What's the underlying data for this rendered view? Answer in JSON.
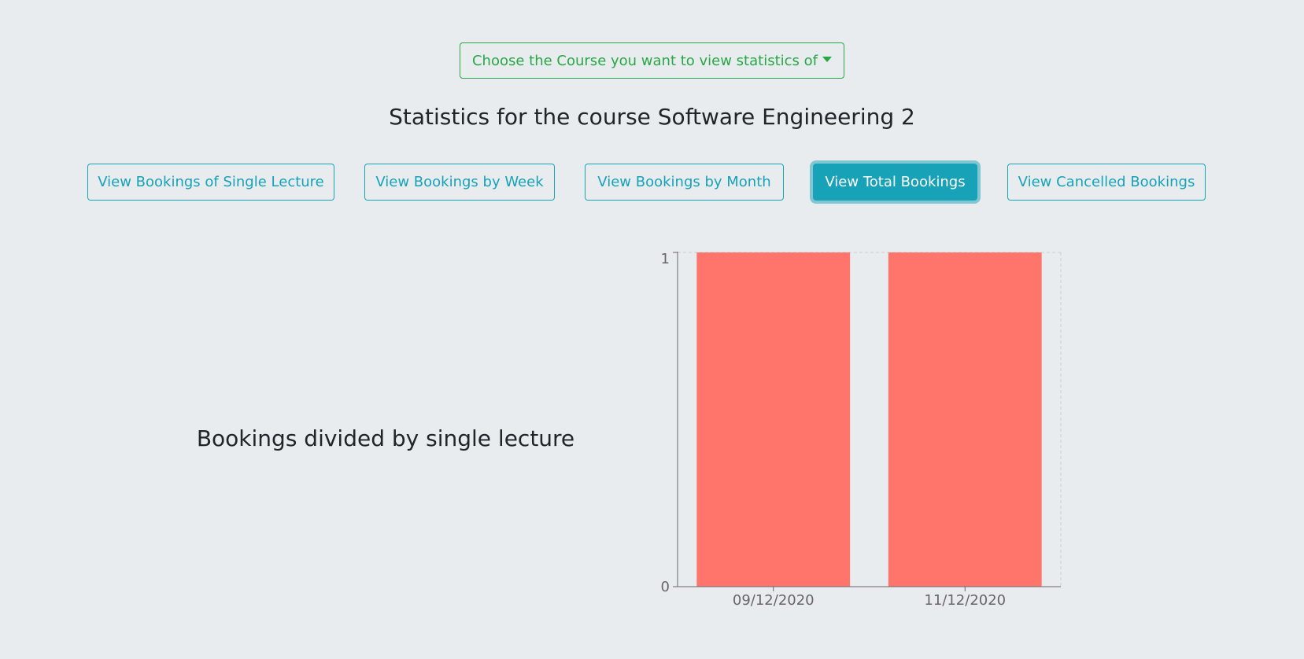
{
  "course_dropdown": {
    "label": "Choose the Course you want to view statistics of",
    "icon": "caret-down-icon",
    "color": "#28a745"
  },
  "page_title": "Statistics for the course Software Engineering 2",
  "view_buttons": [
    {
      "label": "View Bookings of Single Lecture",
      "active": false
    },
    {
      "label": "View Bookings by Week",
      "active": false
    },
    {
      "label": "View Bookings by Month",
      "active": false
    },
    {
      "label": "View Total Bookings",
      "active": true
    },
    {
      "label": "View Cancelled Bookings",
      "active": false
    }
  ],
  "colors": {
    "background": "#e8ecef",
    "accent": "#17a2b8",
    "bar": "#ff756b"
  },
  "chart_heading": "Bookings divided by single lecture",
  "chart_data": {
    "type": "bar",
    "categories": [
      "09/12/2020",
      "11/12/2020"
    ],
    "values": [
      1,
      1
    ],
    "ylim": [
      0,
      1
    ],
    "yticks": [
      0,
      1
    ],
    "grid": false
  }
}
